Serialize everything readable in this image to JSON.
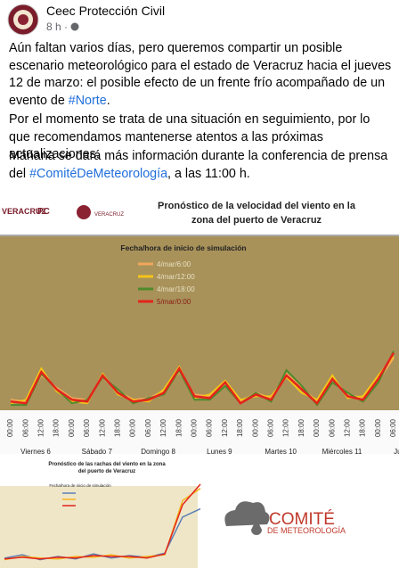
{
  "header": {
    "page_name": "Ceec Protección Civil",
    "time": "8 h ·"
  },
  "paragraphs": [
    {
      "text": "Aún faltan varios días, pero queremos compartir un posible escenario meteorológico para el estado de Veracruz hacia el jueves 12 de marzo: el posible efecto de un frente frío acompañado de un evento de ",
      "hashtag": "#Norte",
      "end": "."
    },
    {
      "text": "Por el momento se trata de una situación en seguimiento, por lo que recomendamos mantenerse atentos a las próximas actualizaciones."
    },
    {
      "text": "Mañana se dará más información durante la conferencia de prensa del ",
      "hashtag": "#ComitéDeMeteorología",
      "end": ", a las 11:00 h."
    }
  ],
  "wind_chart": {
    "type": "line",
    "logos": [
      "VERACRUZ",
      "PC",
      "VERACRUZ"
    ],
    "title": [
      "Pronóstico de la velocidad del viento en la",
      "zona del puerto de Veracruz"
    ],
    "legend_title": "Fecha/hora de inicio de simulación",
    "categories": [
      "00:00",
      "06:00",
      "12:00",
      "18:00",
      "00:00",
      "06:00",
      "12:00",
      "18:00",
      "00:00",
      "06:00",
      "12:00",
      "18:00",
      "00:00",
      "06:00",
      "12:00",
      "18:00",
      "00:00",
      "06:00",
      "12:00",
      "18:00",
      "00:00",
      "06:00",
      "12:00",
      "18:00",
      "00:00",
      "06:00"
    ],
    "days": [
      "Viernes 6",
      "Sábado 7",
      "Domingo 8",
      "Lunes 9",
      "Martes 10",
      "Miércoles 11",
      "Jueve"
    ],
    "ylim": [
      0,
      100
    ],
    "series": [
      {
        "name": "4/mar/6:00",
        "color": "#f2a65a",
        "values": [
          6,
          5,
          20,
          13,
          7,
          6,
          19,
          11,
          6,
          7,
          11,
          22,
          9,
          8,
          15,
          5,
          10,
          7,
          21,
          13,
          5,
          17,
          9,
          7,
          17,
          30
        ]
      },
      {
        "name": "4/mar/12:00",
        "color": "#f5c518",
        "values": [
          4,
          6,
          24,
          11,
          5,
          4,
          21,
          9,
          6,
          5,
          12,
          25,
          7,
          9,
          17,
          6,
          8,
          8,
          19,
          10,
          6,
          20,
          7,
          8,
          20,
          31
        ]
      },
      {
        "name": "4/mar/18:00",
        "color": "#4f8a2b",
        "values": [
          3,
          3,
          21,
          12,
          4,
          6,
          19,
          12,
          4,
          7,
          9,
          23,
          6,
          6,
          14,
          4,
          10,
          5,
          23,
          14,
          3,
          16,
          10,
          5,
          16,
          34
        ]
      },
      {
        "name": "5/mar/0:00",
        "color": "#e3241b",
        "values": [
          5,
          4,
          22,
          12,
          6,
          5,
          20,
          10,
          5,
          6,
          10,
          24,
          8,
          7,
          16,
          4,
          9,
          6,
          20,
          12,
          4,
          18,
          8,
          6,
          18,
          33
        ]
      }
    ]
  },
  "gust_chart": {
    "type": "line",
    "title": [
      "Pronóstico de las rachas del viento en la zona",
      "del puerto de Veracruz"
    ],
    "legend_title": "Fecha/hora de inicio de simulación",
    "ylim": [
      0,
      100
    ],
    "series": [
      {
        "color": "#5b7fb5",
        "values": [
          10,
          14,
          8,
          12,
          9,
          15,
          10,
          13,
          11,
          16,
          60,
          70
        ]
      },
      {
        "color": "#f5b31a",
        "values": [
          8,
          12,
          10,
          9,
          12,
          11,
          14,
          10,
          12,
          14,
          80,
          95
        ]
      },
      {
        "color": "#e3241b",
        "values": [
          9,
          11,
          9,
          11,
          10,
          13,
          12,
          12,
          10,
          15,
          75,
          100
        ]
      }
    ]
  },
  "logo": {
    "line1": "COMITÉ",
    "line2": "DE METEOROLOGÍA"
  }
}
